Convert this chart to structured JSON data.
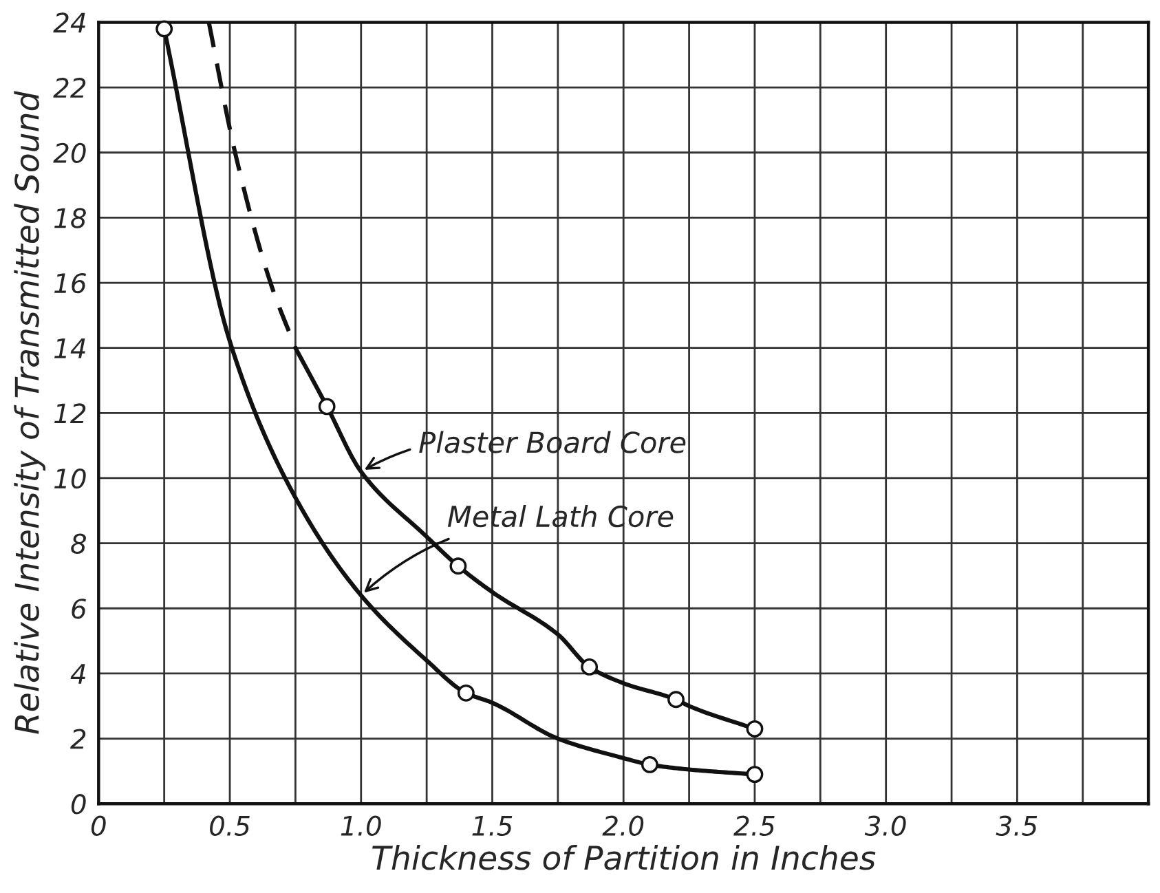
{
  "chart_data": {
    "type": "line",
    "xlabel": "Thickness of Partition in Inches",
    "ylabel": "Relative Intensity of Transmitted Sound",
    "xlim": [
      0,
      4
    ],
    "ylim": [
      0,
      24
    ],
    "xticks": [
      0,
      0.5,
      {
        "value": 0.25,
        "label": null
      },
      {
        "value": 0.75,
        "label": null
      },
      {
        "value": 1.0,
        "label": "1.0"
      },
      {
        "value": 1.25,
        "label": null
      },
      1.5,
      {
        "value": 1.75,
        "label": null
      },
      {
        "value": 2.0,
        "label": "2.0"
      },
      {
        "value": 2.25,
        "label": null
      },
      2.5,
      {
        "value": 2.75,
        "label": null
      },
      {
        "value": 3.0,
        "label": "3.0"
      },
      {
        "value": 3.25,
        "label": null
      },
      3.5,
      {
        "value": 3.75,
        "label": null
      },
      {
        "value": 4.0,
        "label": null
      }
    ],
    "yticks": [
      0,
      2,
      4,
      6,
      8,
      10,
      12,
      14,
      16,
      18,
      20,
      22,
      24
    ],
    "grid": true,
    "legend": false,
    "series": [
      {
        "color": "#111111",
        "line_style": "solid",
        "marker": "none",
        "x": [
          0.25,
          0.5,
          0.75,
          1.0,
          1.25,
          1.4,
          1.5,
          1.75,
          2.0,
          2.1,
          2.25,
          2.5
        ],
        "values": [
          23.8,
          14.2,
          9.4,
          6.4,
          4.4,
          3.4,
          3.1,
          2.0,
          1.4,
          1.2,
          1.05,
          0.9
        ]
      },
      {
        "color": "#111111",
        "line_style": "dashed",
        "marker": "none",
        "x": [
          0.42,
          0.52,
          0.655,
          0.75
        ],
        "values": [
          24,
          20,
          16,
          14
        ]
      },
      {
        "color": "#111111",
        "line_style": "solid",
        "marker": "none",
        "x": [
          0.75,
          0.87,
          1.0,
          1.25,
          1.37,
          1.5,
          1.75,
          1.87,
          2.0,
          2.2,
          2.25,
          2.5
        ],
        "values": [
          14,
          12.2,
          10.2,
          8.2,
          7.3,
          6.5,
          5.2,
          4.2,
          3.7,
          3.2,
          3.0,
          2.3
        ]
      },
      {
        "type": "scatter",
        "color": "#111111",
        "marker": "circle",
        "x": [
          0.25,
          1.4,
          2.1,
          2.5
        ],
        "values": [
          23.8,
          3.4,
          1.2,
          0.9
        ]
      },
      {
        "type": "scatter",
        "color": "#111111",
        "marker": "circle",
        "x": [
          0.87,
          1.37,
          1.87,
          2.2,
          2.5
        ],
        "values": [
          12.2,
          7.3,
          4.2,
          3.2,
          2.3
        ]
      }
    ],
    "annotations": [
      {
        "text": "Plaster Board Core",
        "x": 1.0,
        "y": 10.2
      },
      {
        "text": "Metal Lath Core",
        "x": 1.0,
        "y": 6.4
      }
    ]
  }
}
